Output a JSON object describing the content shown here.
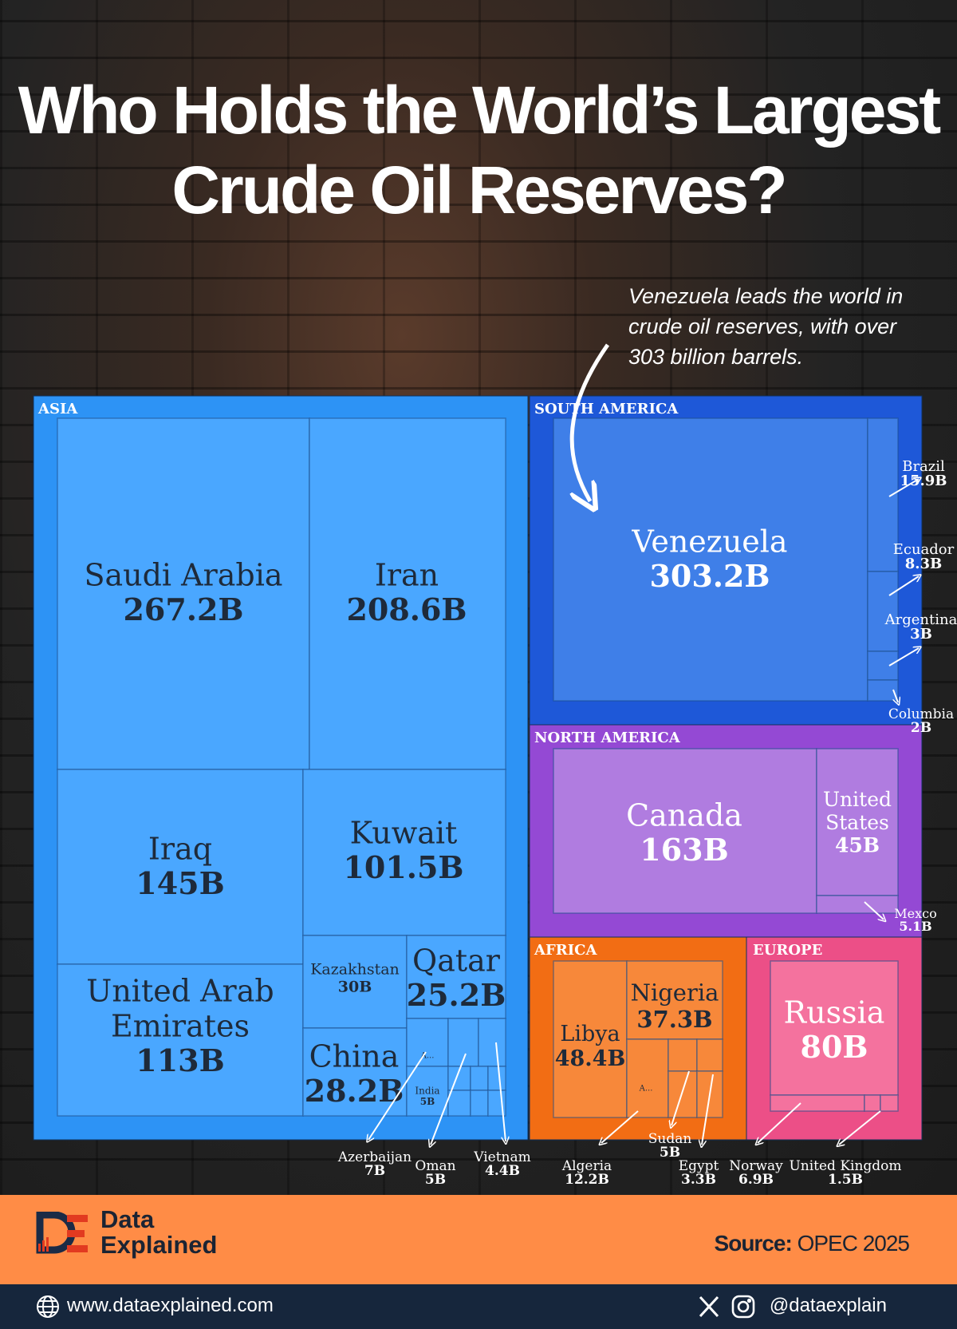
{
  "title": "Who Holds the World’s Largest Crude Oil Reserves?",
  "annotation": "Venezuela leads the world in crude oil reserves, with over 303 billion barrels.",
  "source_label": "Source:",
  "source_value": "OPEC 2025",
  "brand": {
    "line1": "Data",
    "line2": "Explained"
  },
  "website": "www.dataexplained.com",
  "social_handle": "@dataexplain",
  "icons": [
    "globe-icon",
    "x-icon",
    "instagram-icon",
    "brand-logo-icon"
  ],
  "colors": {
    "ASIA": "#4aa7ff",
    "SOUTH AMERICA": "#3f7fe8",
    "NORTH AMERICA": "#b07ce0",
    "AFRICA": "#f7883a",
    "EUROPE": "#f4729e",
    "footer": "#ff8c46",
    "bottom_bar": "#16263c"
  },
  "chart_data": {
    "type": "treemap",
    "unit": "B",
    "groups": [
      {
        "name": "ASIA",
        "items": [
          {
            "name": "Saudi Arabia",
            "value": 267.2
          },
          {
            "name": "Iran",
            "value": 208.6
          },
          {
            "name": "Iraq",
            "value": 145
          },
          {
            "name": "United Arab Emirates",
            "value": 113
          },
          {
            "name": "Kuwait",
            "value": 101.5
          },
          {
            "name": "Kazakhstan",
            "value": 30
          },
          {
            "name": "China",
            "value": 28.2
          },
          {
            "name": "Qatar",
            "value": 25.2
          },
          {
            "name": "Azerbaijan",
            "value": 7
          },
          {
            "name": "Oman",
            "value": 5
          },
          {
            "name": "India",
            "value": 5
          },
          {
            "name": "Vietnam",
            "value": 4.4
          }
        ]
      },
      {
        "name": "SOUTH AMERICA",
        "items": [
          {
            "name": "Venezuela",
            "value": 303.2
          },
          {
            "name": "Brazil",
            "value": 15.9
          },
          {
            "name": "Ecuador",
            "value": 8.3
          },
          {
            "name": "Argentina",
            "value": 3
          },
          {
            "name": "Columbia",
            "value": 2
          }
        ]
      },
      {
        "name": "NORTH AMERICA",
        "items": [
          {
            "name": "Canada",
            "value": 163
          },
          {
            "name": "United States",
            "value": 45
          },
          {
            "name": "Mexco",
            "value": 5.1
          }
        ]
      },
      {
        "name": "AFRICA",
        "items": [
          {
            "name": "Libya",
            "value": 48.4
          },
          {
            "name": "Nigeria",
            "value": 37.3
          },
          {
            "name": "Algeria",
            "value": 12.2
          },
          {
            "name": "Sudan",
            "value": 5
          },
          {
            "name": "Egypt",
            "value": 3.3
          }
        ]
      },
      {
        "name": "EUROPE",
        "items": [
          {
            "name": "Russia",
            "value": 80
          },
          {
            "name": "Norway",
            "value": 6.9
          },
          {
            "name": "United Kingdom",
            "value": 1.5
          }
        ]
      }
    ],
    "cell_labels": [
      {
        "lines": [
          "Saudi Arabia",
          "267.2B"
        ]
      },
      {
        "lines": [
          "Iran",
          "208.6B"
        ]
      },
      {
        "lines": [
          "Iraq",
          "145B"
        ]
      },
      {
        "lines": [
          "United Arab",
          "Emirates",
          "113B"
        ]
      },
      {
        "lines": [
          "Kuwait",
          "101.5B"
        ]
      },
      {
        "lines": [
          "Kazakhstan",
          "30B"
        ]
      },
      {
        "lines": [
          "Qatar",
          "25.2B"
        ]
      },
      {
        "lines": [
          "China",
          "28.2B"
        ]
      },
      {
        "lines": [
          "A..."
        ]
      },
      {
        "lines": [
          "India",
          "5B"
        ]
      },
      {
        "lines": [
          "Venezuela",
          "303.2B"
        ]
      },
      {
        "lines": [
          "Canada",
          "163B"
        ]
      },
      {
        "lines": [
          "United",
          "States",
          "45B"
        ]
      },
      {
        "lines": [
          "Libya",
          "48.4B"
        ]
      },
      {
        "lines": [
          "Nigeria",
          "37.3B"
        ]
      },
      {
        "lines": [
          "A..."
        ]
      },
      {
        "lines": [
          "Russia",
          "80B"
        ]
      }
    ],
    "callouts": [
      {
        "lines": [
          "Brazil",
          "15.9B"
        ]
      },
      {
        "lines": [
          "Ecuador",
          "8.3B"
        ]
      },
      {
        "lines": [
          "Argentina",
          "3B"
        ]
      },
      {
        "lines": [
          "Columbia",
          "2B"
        ]
      },
      {
        "lines": [
          "Mexco",
          "5.1B"
        ]
      },
      {
        "lines": [
          "Azerbaijan",
          "7B"
        ]
      },
      {
        "lines": [
          "Oman",
          "5B"
        ]
      },
      {
        "lines": [
          "Vietnam",
          "4.4B"
        ]
      },
      {
        "lines": [
          "Algeria",
          "12.2B"
        ]
      },
      {
        "lines": [
          "Sudan",
          "5B"
        ]
      },
      {
        "lines": [
          "Egypt",
          "3.3B"
        ]
      },
      {
        "lines": [
          "Norway",
          "6.9B"
        ]
      },
      {
        "lines": [
          "United Kingdom",
          "1.5B"
        ]
      }
    ]
  }
}
